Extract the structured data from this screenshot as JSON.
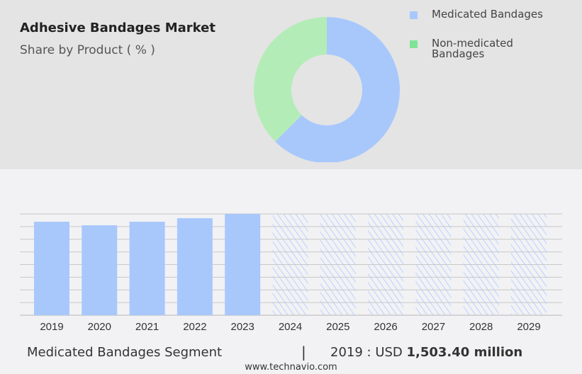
{
  "header": {
    "title": "Adhesive Bandages Market",
    "subtitle": "Share by Product ( % )"
  },
  "colors": {
    "medicated": "#a8c8fc",
    "non_medicated": "#b4ecb8",
    "non_medicated_legend": "#7ee495",
    "top_bg": "#e4e4e4",
    "bottom_bg": "#f2f2f4"
  },
  "chart_data": [
    {
      "type": "pie",
      "donut": true,
      "title": "Adhesive Bandages Market",
      "subtitle": "Share by Product ( % )",
      "legend_position": "right",
      "slices": [
        {
          "name": "Medicated Bandages",
          "value": 62.5
        },
        {
          "name": "Non-medicated Bandages",
          "value": 37.5
        }
      ]
    },
    {
      "type": "bar",
      "grid": true,
      "categories": [
        "2019",
        "2020",
        "2021",
        "2022",
        "2023",
        "2024",
        "2025",
        "2026",
        "2027",
        "2028",
        "2029"
      ],
      "values": [
        1503.4,
        1446,
        1503,
        1560,
        1629,
        null,
        null,
        null,
        null,
        null,
        null
      ],
      "forecast_from": "2024",
      "ylim": [
        0,
        1629
      ]
    }
  ],
  "legend": {
    "items": [
      {
        "label": "Medicated Bandages"
      },
      {
        "label": "Non-medicated Bandages",
        "line1": "Non-medicated",
        "line2": "Bandages"
      }
    ]
  },
  "footer": {
    "segment": "Medicated Bandages Segment",
    "separator": "|",
    "year_label": "2019 : USD ",
    "value": "1,503.40 million",
    "site": "www.technavio.com"
  }
}
